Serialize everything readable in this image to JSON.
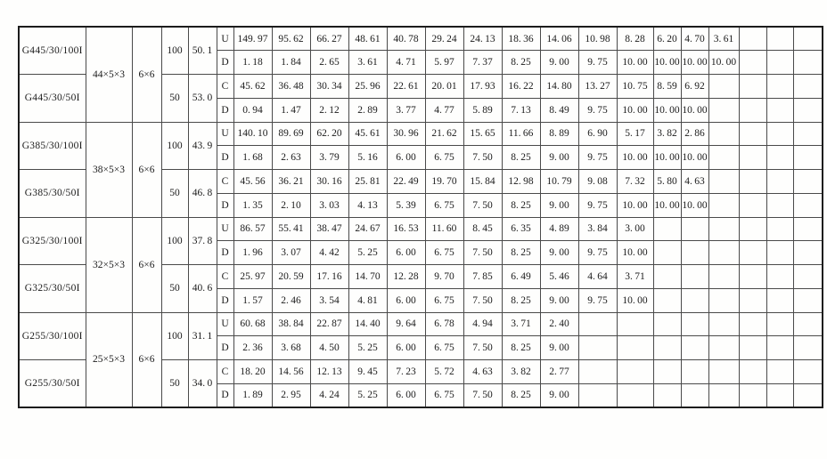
{
  "table": {
    "data_columns": 17,
    "row_letters_note": "U/D/C/D per variant pair",
    "blocks": [
      {
        "size": "44×5×3",
        "mesh": "6×6",
        "variants": [
          {
            "model": "G445/30/100I",
            "qty": "100",
            "coef": "50.1",
            "rows": [
              {
                "letter": "U",
                "values": [
                  "149.97",
                  "95.62",
                  "66.27",
                  "48.61",
                  "40.78",
                  "29.24",
                  "24.13",
                  "18.36",
                  "14.06",
                  "10.98",
                  "8.28",
                  "6.20",
                  "4.70",
                  "3.61"
                ]
              },
              {
                "letter": "D",
                "values": [
                  "1.18",
                  "1.84",
                  "2.65",
                  "3.61",
                  "4.71",
                  "5.97",
                  "7.37",
                  "8.25",
                  "9.00",
                  "9.75",
                  "10.00",
                  "10.00",
                  "10.00",
                  "10.00"
                ]
              }
            ]
          },
          {
            "model": "G445/30/50I",
            "qty": "50",
            "coef": "53.0",
            "rows": [
              {
                "letter": "C",
                "values": [
                  "45.62",
                  "36.48",
                  "30.34",
                  "25.96",
                  "22.61",
                  "20.01",
                  "17.93",
                  "16.22",
                  "14.80",
                  "13.27",
                  "10.75",
                  "8.59",
                  "6.92"
                ]
              },
              {
                "letter": "D",
                "values": [
                  "0.94",
                  "1.47",
                  "2.12",
                  "2.89",
                  "3.77",
                  "4.77",
                  "5.89",
                  "7.13",
                  "8.49",
                  "9.75",
                  "10.00",
                  "10.00",
                  "10.00"
                ]
              }
            ]
          }
        ]
      },
      {
        "size": "38×5×3",
        "mesh": "6×6",
        "variants": [
          {
            "model": "G385/30/100I",
            "qty": "100",
            "coef": "43.9",
            "rows": [
              {
                "letter": "U",
                "values": [
                  "140.10",
                  "89.69",
                  "62.20",
                  "45.61",
                  "30.96",
                  "21.62",
                  "15.65",
                  "11.66",
                  "8.89",
                  "6.90",
                  "5.17",
                  "3.82",
                  "2.86"
                ]
              },
              {
                "letter": "D",
                "values": [
                  "1.68",
                  "2.63",
                  "3.79",
                  "5.16",
                  "6.00",
                  "6.75",
                  "7.50",
                  "8.25",
                  "9.00",
                  "9.75",
                  "10.00",
                  "10.00",
                  "10.00"
                ]
              }
            ]
          },
          {
            "model": "G385/30/50I",
            "qty": "50",
            "coef": "46.8",
            "rows": [
              {
                "letter": "C",
                "values": [
                  "45.56",
                  "36.21",
                  "30.16",
                  "25.81",
                  "22.49",
                  "19.70",
                  "15.84",
                  "12.98",
                  "10.79",
                  "9.08",
                  "7.32",
                  "5.80",
                  "4.63"
                ]
              },
              {
                "letter": "D",
                "values": [
                  "1.35",
                  "2.10",
                  "3.03",
                  "4.13",
                  "5.39",
                  "6.75",
                  "7.50",
                  "8.25",
                  "9.00",
                  "9.75",
                  "10.00",
                  "10.00",
                  "10.00"
                ]
              }
            ]
          }
        ]
      },
      {
        "size": "32×5×3",
        "mesh": "6×6",
        "variants": [
          {
            "model": "G325/30/100I",
            "qty": "100",
            "coef": "37.8",
            "rows": [
              {
                "letter": "U",
                "values": [
                  "86.57",
                  "55.41",
                  "38.47",
                  "24.67",
                  "16.53",
                  "11.60",
                  "8.45",
                  "6.35",
                  "4.89",
                  "3.84",
                  "3.00"
                ]
              },
              {
                "letter": "D",
                "values": [
                  "1.96",
                  "3.07",
                  "4.42",
                  "5.25",
                  "6.00",
                  "6.75",
                  "7.50",
                  "8.25",
                  "9.00",
                  "9.75",
                  "10.00"
                ]
              }
            ]
          },
          {
            "model": "G325/30/50I",
            "qty": "50",
            "coef": "40.6",
            "rows": [
              {
                "letter": "C",
                "values": [
                  "25.97",
                  "20.59",
                  "17.16",
                  "14.70",
                  "12.28",
                  "9.70",
                  "7.85",
                  "6.49",
                  "5.46",
                  "4.64",
                  "3.71"
                ]
              },
              {
                "letter": "D",
                "values": [
                  "1.57",
                  "2.46",
                  "3.54",
                  "4.81",
                  "6.00",
                  "6.75",
                  "7.50",
                  "8.25",
                  "9.00",
                  "9.75",
                  "10.00"
                ]
              }
            ]
          }
        ]
      },
      {
        "size": "25×5×3",
        "mesh": "6×6",
        "variants": [
          {
            "model": "G255/30/100I",
            "qty": "100",
            "coef": "31.1",
            "rows": [
              {
                "letter": "U",
                "values": [
                  "60.68",
                  "38.84",
                  "22.87",
                  "14.40",
                  "9.64",
                  "6.78",
                  "4.94",
                  "3.71",
                  "2.40"
                ]
              },
              {
                "letter": "D",
                "values": [
                  "2.36",
                  "3.68",
                  "4.50",
                  "5.25",
                  "6.00",
                  "6.75",
                  "7.50",
                  "8.25",
                  "9.00"
                ]
              }
            ]
          },
          {
            "model": "G255/30/50I",
            "qty": "50",
            "coef": "34.0",
            "rows": [
              {
                "letter": "C",
                "values": [
                  "18.20",
                  "14.56",
                  "12.13",
                  "9.45",
                  "7.23",
                  "5.72",
                  "4.63",
                  "3.82",
                  "2.77"
                ]
              },
              {
                "letter": "D",
                "values": [
                  "1.89",
                  "2.95",
                  "4.24",
                  "5.25",
                  "6.00",
                  "6.75",
                  "7.50",
                  "8.25",
                  "9.00"
                ]
              }
            ]
          }
        ]
      }
    ]
  }
}
